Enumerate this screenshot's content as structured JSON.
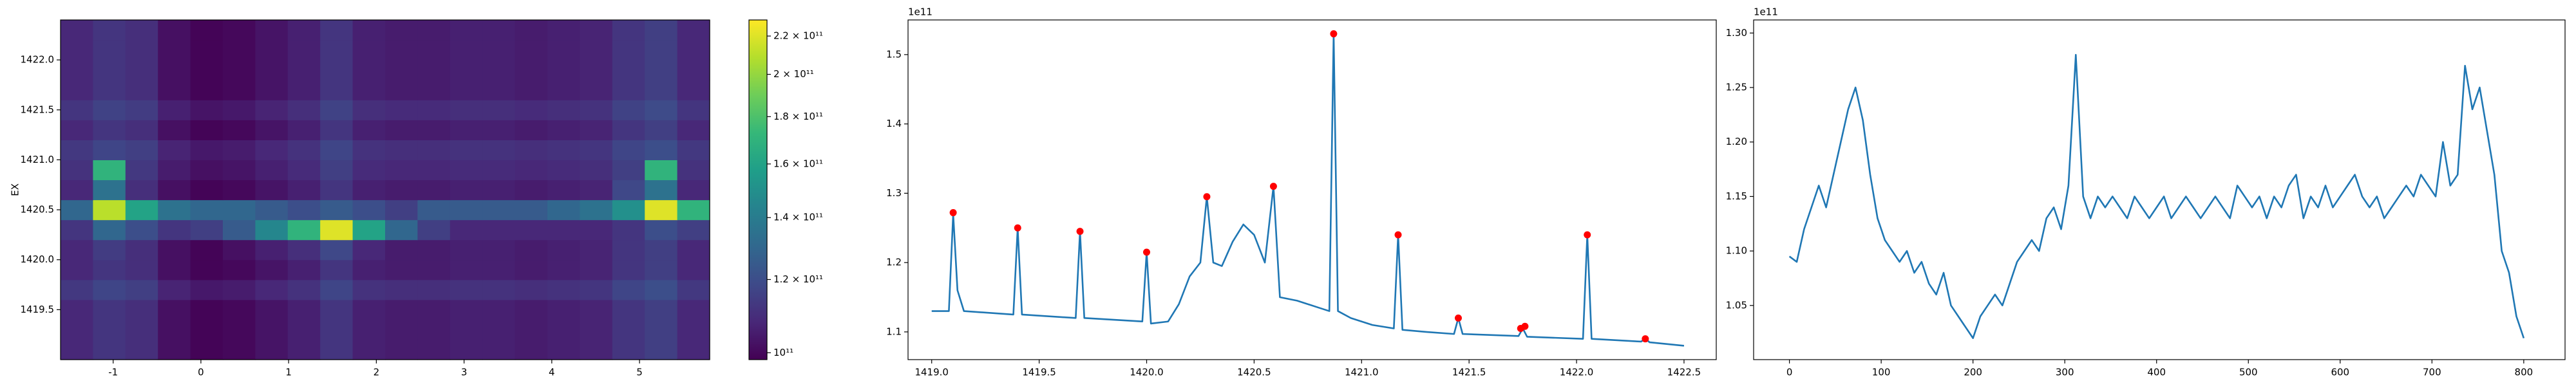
{
  "chart_data": [
    {
      "type": "heatmap",
      "ylabel": "EX",
      "xlim": [
        -1.6,
        5.8
      ],
      "ylim": [
        1419.0,
        1422.4
      ],
      "xticks": [
        -1,
        0,
        1,
        2,
        3,
        4,
        5
      ],
      "yticks": [
        1419.5,
        {
          "value": 1420,
          "label": "1420.0"
        },
        1420.5,
        {
          "value": 1421,
          "label": "1421.0"
        },
        1421.5,
        {
          "value": 1422,
          "label": "1422.0"
        }
      ],
      "colormap": "viridis",
      "color_scale": "log",
      "clim": [
        98300000000.0,
        229000000000.0
      ],
      "colorbar_ticks": [
        {
          "value": 100000000000.0,
          "label": "10¹¹"
        },
        {
          "value": 120000000000.0,
          "label": "1.2 × 10¹¹"
        },
        {
          "value": 140000000000.0,
          "label": "1.4 × 10¹¹"
        },
        {
          "value": 160000000000.0,
          "label": "1.6 × 10¹¹"
        },
        {
          "value": 180000000000.0,
          "label": "1.8 × 10¹¹"
        },
        {
          "value": 200000000000.0,
          "label": "2 × 10¹¹"
        },
        {
          "value": 220000000000.0,
          "label": "2.2 × 10¹¹"
        }
      ],
      "z": [
        [
          108000000000.0,
          112000000000.0,
          110000000000.0,
          102000000000.0,
          99000000000.0,
          100000000000.0,
          103000000000.0,
          106000000000.0,
          112000000000.0,
          106000000000.0,
          105000000000.0,
          105000000000.0,
          106000000000.0,
          106000000000.0,
          105000000000.0,
          106000000000.0,
          107000000000.0,
          112000000000.0,
          115000000000.0,
          108000000000.0
        ],
        [
          108000000000.0,
          112000000000.0,
          110000000000.0,
          102000000000.0,
          99000000000.0,
          100000000000.0,
          103000000000.0,
          106000000000.0,
          112000000000.0,
          106000000000.0,
          105000000000.0,
          105000000000.0,
          106000000000.0,
          106000000000.0,
          105000000000.0,
          106000000000.0,
          107000000000.0,
          112000000000.0,
          115000000000.0,
          108000000000.0
        ],
        [
          108000000000.0,
          112000000000.0,
          110000000000.0,
          102000000000.0,
          99000000000.0,
          100000000000.0,
          103000000000.0,
          106000000000.0,
          112000000000.0,
          106000000000.0,
          105000000000.0,
          105000000000.0,
          106000000000.0,
          106000000000.0,
          105000000000.0,
          106000000000.0,
          107000000000.0,
          112000000000.0,
          115000000000.0,
          108000000000.0
        ],
        [
          113000000000.0,
          117000000000.0,
          115000000000.0,
          107000000000.0,
          104000000000.0,
          105000000000.0,
          108000000000.0,
          111000000000.0,
          117000000000.0,
          111000000000.0,
          110000000000.0,
          110000000000.0,
          111000000000.0,
          111000000000.0,
          110000000000.0,
          111000000000.0,
          112000000000.0,
          117000000000.0,
          120000000000.0,
          113000000000.0
        ],
        [
          108000000000.0,
          112000000000.0,
          110000000000.0,
          102000000000.0,
          99000000000.0,
          100000000000.0,
          103000000000.0,
          106000000000.0,
          112000000000.0,
          106000000000.0,
          105000000000.0,
          105000000000.0,
          106000000000.0,
          106000000000.0,
          105000000000.0,
          106000000000.0,
          107000000000.0,
          112000000000.0,
          115000000000.0,
          108000000000.0
        ],
        [
          108000000000.0,
          114000000000.0,
          110000000000.0,
          102000000000.0,
          99000000000.0,
          102000000000.0,
          106000000000.0,
          110000000000.0,
          118000000000.0,
          108000000000.0,
          105000000000.0,
          105000000000.0,
          106000000000.0,
          106000000000.0,
          105000000000.0,
          106000000000.0,
          107000000000.0,
          112000000000.0,
          115000000000.0,
          108000000000.0
        ],
        [
          112000000000.0,
          130000000000.0,
          120000000000.0,
          112000000000.0,
          115000000000.0,
          125000000000.0,
          145000000000.0,
          170000000000.0,
          220000000000.0,
          160000000000.0,
          130000000000.0,
          115000000000.0,
          108000000000.0,
          108000000000.0,
          108000000000.0,
          108000000000.0,
          108000000000.0,
          112000000000.0,
          120000000000.0,
          115000000000.0
        ],
        [
          130000000000.0,
          210000000000.0,
          160000000000.0,
          135000000000.0,
          130000000000.0,
          130000000000.0,
          125000000000.0,
          120000000000.0,
          125000000000.0,
          120000000000.0,
          115000000000.0,
          125000000000.0,
          125000000000.0,
          125000000000.0,
          125000000000.0,
          130000000000.0,
          135000000000.0,
          150000000000.0,
          220000000000.0,
          170000000000.0
        ],
        [
          108000000000.0,
          135000000000.0,
          110000000000.0,
          102000000000.0,
          99000000000.0,
          100000000000.0,
          103000000000.0,
          106000000000.0,
          112000000000.0,
          106000000000.0,
          105000000000.0,
          105000000000.0,
          106000000000.0,
          106000000000.0,
          105000000000.0,
          106000000000.0,
          107000000000.0,
          118000000000.0,
          135000000000.0,
          108000000000.0
        ],
        [
          111000000000.0,
          170000000000.0,
          113000000000.0,
          105000000000.0,
          102000000000.0,
          103000000000.0,
          106000000000.0,
          109000000000.0,
          115000000000.0,
          109000000000.0,
          108000000000.0,
          108000000000.0,
          109000000000.0,
          109000000000.0,
          108000000000.0,
          109000000000.0,
          110000000000.0,
          115000000000.0,
          170000000000.0,
          111000000000.0
        ],
        [
          113000000000.0,
          117000000000.0,
          115000000000.0,
          107000000000.0,
          104000000000.0,
          105000000000.0,
          108000000000.0,
          111000000000.0,
          117000000000.0,
          111000000000.0,
          110000000000.0,
          110000000000.0,
          111000000000.0,
          111000000000.0,
          110000000000.0,
          111000000000.0,
          112000000000.0,
          117000000000.0,
          120000000000.0,
          113000000000.0
        ],
        [
          108000000000.0,
          112000000000.0,
          110000000000.0,
          102000000000.0,
          99000000000.0,
          100000000000.0,
          103000000000.0,
          106000000000.0,
          112000000000.0,
          106000000000.0,
          105000000000.0,
          105000000000.0,
          106000000000.0,
          106000000000.0,
          105000000000.0,
          106000000000.0,
          107000000000.0,
          112000000000.0,
          115000000000.0,
          108000000000.0
        ],
        [
          112000000000.0,
          116000000000.0,
          114000000000.0,
          106000000000.0,
          103000000000.0,
          104000000000.0,
          107000000000.0,
          110000000000.0,
          116000000000.0,
          110000000000.0,
          109000000000.0,
          109000000000.0,
          110000000000.0,
          110000000000.0,
          109000000000.0,
          110000000000.0,
          111000000000.0,
          116000000000.0,
          119000000000.0,
          112000000000.0
        ],
        [
          108000000000.0,
          112000000000.0,
          110000000000.0,
          102000000000.0,
          99000000000.0,
          100000000000.0,
          103000000000.0,
          106000000000.0,
          112000000000.0,
          106000000000.0,
          105000000000.0,
          105000000000.0,
          106000000000.0,
          106000000000.0,
          105000000000.0,
          106000000000.0,
          107000000000.0,
          112000000000.0,
          115000000000.0,
          108000000000.0
        ],
        [
          108000000000.0,
          112000000000.0,
          110000000000.0,
          102000000000.0,
          99000000000.0,
          100000000000.0,
          103000000000.0,
          106000000000.0,
          112000000000.0,
          106000000000.0,
          105000000000.0,
          105000000000.0,
          106000000000.0,
          106000000000.0,
          105000000000.0,
          106000000000.0,
          107000000000.0,
          112000000000.0,
          115000000000.0,
          108000000000.0
        ],
        [
          108000000000.0,
          112000000000.0,
          110000000000.0,
          102000000000.0,
          99000000000.0,
          100000000000.0,
          103000000000.0,
          106000000000.0,
          112000000000.0,
          106000000000.0,
          105000000000.0,
          105000000000.0,
          106000000000.0,
          106000000000.0,
          105000000000.0,
          106000000000.0,
          107000000000.0,
          112000000000.0,
          115000000000.0,
          108000000000.0
        ],
        [
          108000000000.0,
          112000000000.0,
          110000000000.0,
          102000000000.0,
          99000000000.0,
          100000000000.0,
          103000000000.0,
          106000000000.0,
          112000000000.0,
          106000000000.0,
          105000000000.0,
          105000000000.0,
          106000000000.0,
          106000000000.0,
          105000000000.0,
          106000000000.0,
          107000000000.0,
          112000000000.0,
          115000000000.0,
          108000000000.0
        ]
      ]
    },
    {
      "type": "line",
      "offset_text": "1e11",
      "xlim": [
        1418.89,
        1422.65
      ],
      "ylim": [
        1.06,
        1.55
      ],
      "xticks": [
        {
          "value": 1419,
          "label": "1419.0"
        },
        1419.5,
        {
          "value": 1420,
          "label": "1420.0"
        },
        1420.5,
        {
          "value": 1421,
          "label": "1421.0"
        },
        1421.5,
        {
          "value": 1422,
          "label": "1422.0"
        },
        1422.5
      ],
      "yticks": [
        1.1,
        1.2,
        1.3,
        1.4,
        1.5
      ],
      "series": [
        {
          "color": "#1f77b4",
          "style": "line",
          "x": [
            1419.0,
            1419.08,
            1419.1,
            1419.12,
            1419.15,
            1419.38,
            1419.4,
            1419.42,
            1419.67,
            1419.69,
            1419.71,
            1419.98,
            1420.0,
            1420.02,
            1420.1,
            1420.15,
            1420.2,
            1420.25,
            1420.28,
            1420.31,
            1420.35,
            1420.4,
            1420.45,
            1420.5,
            1420.55,
            1420.59,
            1420.62,
            1420.7,
            1420.8,
            1420.85,
            1420.87,
            1420.89,
            1420.95,
            1421.05,
            1421.15,
            1421.17,
            1421.19,
            1421.3,
            1421.43,
            1421.45,
            1421.47,
            1421.73,
            1421.75,
            1421.77,
            1422.03,
            1422.05,
            1422.07,
            1422.3,
            1422.32,
            1422.34,
            1422.5
          ],
          "values": [
            1.13,
            1.13,
            1.27,
            1.16,
            1.13,
            1.125,
            1.25,
            1.125,
            1.12,
            1.245,
            1.12,
            1.115,
            1.215,
            1.112,
            1.115,
            1.14,
            1.18,
            1.2,
            1.295,
            1.2,
            1.195,
            1.23,
            1.255,
            1.24,
            1.2,
            1.31,
            1.15,
            1.145,
            1.135,
            1.13,
            1.53,
            1.13,
            1.12,
            1.11,
            1.105,
            1.24,
            1.103,
            1.1,
            1.097,
            1.12,
            1.097,
            1.094,
            1.105,
            1.093,
            1.09,
            1.24,
            1.09,
            1.086,
            1.09,
            1.085,
            1.08
          ]
        },
        {
          "color": "#ff0000",
          "style": "markers",
          "x": [
            1419.1,
            1419.4,
            1419.69,
            1420.0,
            1420.28,
            1420.59,
            1420.87,
            1421.17,
            1421.45,
            1421.74,
            1421.76,
            1422.05,
            1422.32
          ],
          "values": [
            1.272,
            1.25,
            1.245,
            1.215,
            1.295,
            1.31,
            1.53,
            1.24,
            1.12,
            1.105,
            1.108,
            1.24,
            1.09
          ]
        }
      ]
    },
    {
      "type": "line",
      "offset_text": "1e11",
      "xlim": [
        -39,
        845
      ],
      "ylim": [
        1.0003,
        1.312
      ],
      "xticks": [
        0,
        100,
        200,
        300,
        400,
        500,
        600,
        700,
        800
      ],
      "yticks": [
        1.05,
        {
          "value": 1.1,
          "label": "1.10"
        },
        1.15,
        {
          "value": 1.2,
          "label": "1.20"
        },
        1.25,
        {
          "value": 1.3,
          "label": "1.30"
        }
      ],
      "series": [
        {
          "color": "#1f77b4",
          "style": "line",
          "x": [
            0,
            8,
            16,
            24,
            32,
            40,
            48,
            56,
            64,
            72,
            80,
            88,
            96,
            104,
            112,
            120,
            128,
            136,
            144,
            152,
            160,
            168,
            176,
            184,
            192,
            200,
            208,
            216,
            224,
            232,
            240,
            248,
            256,
            264,
            272,
            280,
            288,
            296,
            304,
            312,
            320,
            328,
            336,
            344,
            352,
            360,
            368,
            376,
            384,
            392,
            400,
            408,
            416,
            424,
            432,
            440,
            448,
            456,
            464,
            472,
            480,
            488,
            496,
            504,
            512,
            520,
            528,
            536,
            544,
            552,
            560,
            568,
            576,
            584,
            592,
            600,
            608,
            616,
            624,
            632,
            640,
            648,
            656,
            664,
            672,
            680,
            688,
            696,
            704,
            712,
            720,
            728,
            736,
            744,
            752,
            760,
            768,
            776,
            784,
            792,
            800
          ],
          "values": [
            1.095,
            1.09,
            1.12,
            1.14,
            1.16,
            1.14,
            1.17,
            1.2,
            1.23,
            1.25,
            1.22,
            1.17,
            1.13,
            1.11,
            1.1,
            1.09,
            1.1,
            1.08,
            1.09,
            1.07,
            1.06,
            1.08,
            1.05,
            1.04,
            1.03,
            1.02,
            1.04,
            1.05,
            1.06,
            1.05,
            1.07,
            1.09,
            1.1,
            1.11,
            1.1,
            1.13,
            1.14,
            1.12,
            1.16,
            1.28,
            1.15,
            1.13,
            1.15,
            1.14,
            1.15,
            1.14,
            1.13,
            1.15,
            1.14,
            1.13,
            1.14,
            1.15,
            1.13,
            1.14,
            1.15,
            1.14,
            1.13,
            1.14,
            1.15,
            1.14,
            1.13,
            1.16,
            1.15,
            1.14,
            1.15,
            1.13,
            1.15,
            1.14,
            1.16,
            1.17,
            1.13,
            1.15,
            1.14,
            1.16,
            1.14,
            1.15,
            1.16,
            1.17,
            1.15,
            1.14,
            1.15,
            1.13,
            1.14,
            1.15,
            1.16,
            1.15,
            1.17,
            1.16,
            1.15,
            1.2,
            1.16,
            1.17,
            1.27,
            1.23,
            1.25,
            1.21,
            1.17,
            1.1,
            1.08,
            1.04,
            1.02
          ]
        }
      ]
    }
  ]
}
